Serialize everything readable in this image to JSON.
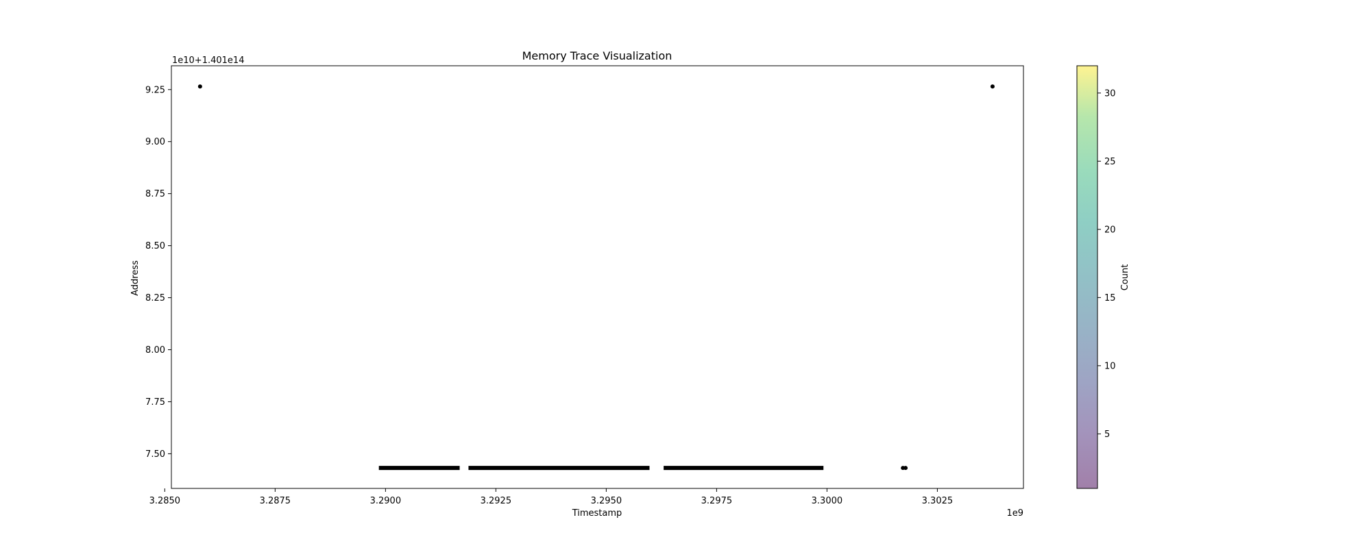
{
  "chart_data": {
    "type": "scatter",
    "title": "Memory Trace Visualization",
    "xlabel": "Timestamp",
    "ylabel": "Address",
    "x_offset_label": "1e9",
    "y_offset_label": "1e10+1.401e14",
    "xlim": [
      3.28515,
      3.30445
    ],
    "ylim": [
      7.3335,
      9.3645
    ],
    "x_ticks": [
      3.285,
      3.2875,
      3.29,
      3.2925,
      3.295,
      3.2975,
      3.3,
      3.3025
    ],
    "x_tick_labels": [
      "3.2850",
      "3.2875",
      "3.2900",
      "3.2925",
      "3.2950",
      "3.2975",
      "3.3000",
      "3.3025"
    ],
    "y_ticks": [
      7.5,
      7.75,
      8.0,
      8.25,
      8.5,
      8.75,
      9.0,
      9.25
    ],
    "y_tick_labels": [
      "7.50",
      "7.75",
      "8.00",
      "8.25",
      "8.50",
      "8.75",
      "9.00",
      "9.25"
    ],
    "grid": false,
    "points": [
      {
        "x": 3.2858,
        "y": 9.265,
        "count": 1
      },
      {
        "x": 3.30375,
        "y": 9.265,
        "count": 1
      },
      {
        "x": 3.30172,
        "y": 7.432,
        "count": 1
      },
      {
        "x": 3.30178,
        "y": 7.432,
        "count": 1
      }
    ],
    "dense_segments": [
      {
        "x_start": 3.28985,
        "x_end": 3.29168,
        "y": 7.432
      },
      {
        "x_start": 3.29188,
        "x_end": 3.29598,
        "y": 7.432
      },
      {
        "x_start": 3.2963,
        "x_end": 3.29992,
        "y": 7.432
      }
    ],
    "colorbar": {
      "label": "Count",
      "colormap": "viridis",
      "alpha": 0.5,
      "range": [
        1,
        32
      ],
      "ticks": [
        5,
        10,
        15,
        20,
        25,
        30
      ],
      "tick_labels": [
        "5",
        "10",
        "15",
        "20",
        "25",
        "30"
      ]
    }
  }
}
